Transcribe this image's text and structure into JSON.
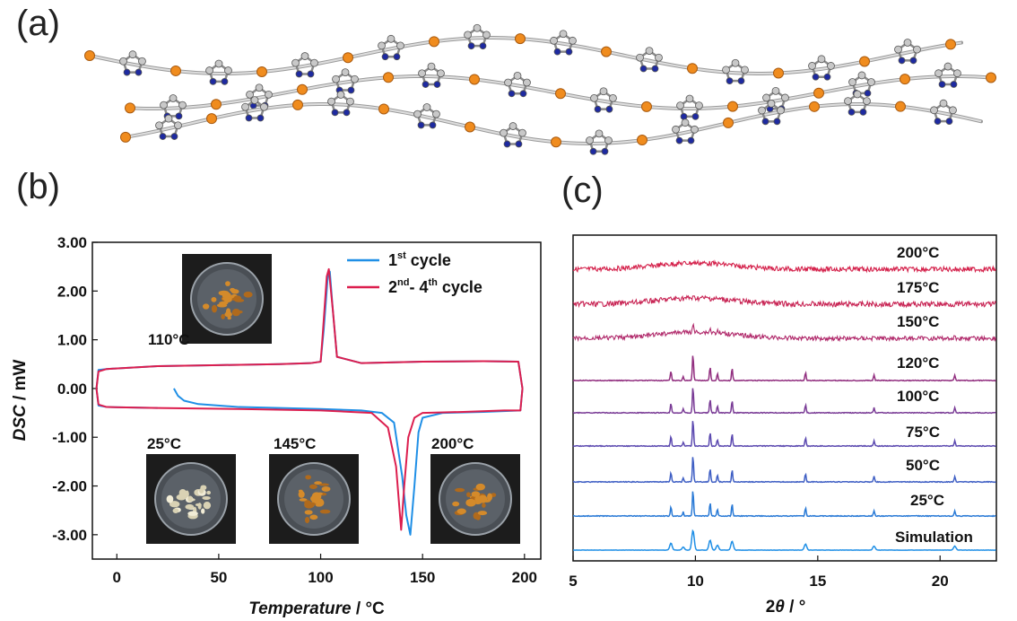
{
  "panels": {
    "a": "(a)",
    "b": "(b)",
    "c": "(c)"
  },
  "colors": {
    "first_cycle": "#1f8fe6",
    "other_cycles": "#dc1e4e",
    "metal_atom": "#f08c1e",
    "nitrogen_atom": "#1e2aa0",
    "carbon_atom": "#c8c8c8",
    "dish_content": "#b06a1c"
  },
  "chart_data": [
    {
      "id": "dsc",
      "type": "line",
      "xlabel": "Temperature",
      "xunit": "°C",
      "ylabel": "DSC",
      "yunit": "mW",
      "xlim": [
        -12,
        208
      ],
      "ylim": [
        -3.5,
        3.0
      ],
      "xticks": [
        0,
        50,
        100,
        150,
        200
      ],
      "yticks": [
        3.0,
        2.0,
        1.0,
        0.0,
        -1.0,
        -2.0,
        -3.0
      ],
      "ytick_labels": [
        "3.00",
        "2.00",
        "1.00",
        "0.00",
        "-1.00",
        "-2.00",
        "-3.00"
      ],
      "legend": [
        {
          "base": "1",
          "sup": "st",
          "rest": " cycle"
        },
        {
          "base": "2",
          "sup": "nd",
          "rest": "- 4",
          "sup2": "th",
          "rest2": " cycle"
        }
      ],
      "annotations": [
        {
          "label": "110°C",
          "x": 110
        },
        {
          "label": "25°C",
          "x": 25
        },
        {
          "label": "145°C",
          "x": 145
        },
        {
          "label": "200°C",
          "x": 200
        }
      ],
      "series": [
        {
          "name": "1st cycle",
          "x": [
            28,
            30,
            33,
            40,
            60,
            100,
            120,
            130,
            136,
            140,
            142,
            144,
            146,
            148,
            150,
            160,
            180,
            198,
            199,
            197,
            180,
            150,
            120,
            108,
            106,
            104.5,
            103.5,
            101.5,
            100,
            95,
            80,
            50,
            20,
            -5,
            -9,
            -10,
            -9,
            -5,
            20
          ],
          "y": [
            0.0,
            -0.15,
            -0.25,
            -0.32,
            -0.38,
            -0.42,
            -0.45,
            -0.5,
            -0.7,
            -1.8,
            -2.6,
            -3.0,
            -2.0,
            -0.9,
            -0.6,
            -0.5,
            -0.48,
            -0.45,
            0.0,
            0.55,
            0.56,
            0.55,
            0.52,
            0.65,
            1.6,
            2.4,
            2.3,
            1.2,
            0.55,
            0.52,
            0.5,
            0.48,
            0.46,
            0.4,
            0.38,
            0.0,
            -0.35,
            -0.38,
            -0.4
          ]
        },
        {
          "name": "2nd- 4th cycle",
          "x": [
            -9,
            -5,
            20,
            60,
            100,
            125,
            133,
            137,
            139.5,
            141,
            143,
            146,
            150,
            170,
            190,
            198,
            199,
            197,
            180,
            150,
            120,
            108,
            106,
            104,
            103,
            101,
            100,
            95,
            80,
            50,
            20,
            -5,
            -9,
            -10,
            -9
          ],
          "y": [
            -0.33,
            -0.38,
            -0.4,
            -0.42,
            -0.45,
            -0.5,
            -0.8,
            -1.6,
            -2.9,
            -2.0,
            -1.0,
            -0.6,
            -0.5,
            -0.48,
            -0.45,
            -0.45,
            0.0,
            0.55,
            0.56,
            0.55,
            0.52,
            0.65,
            1.6,
            2.45,
            2.3,
            1.1,
            0.55,
            0.52,
            0.5,
            0.48,
            0.46,
            0.4,
            0.35,
            0.0,
            -0.33
          ]
        }
      ]
    },
    {
      "id": "pxrd",
      "type": "line",
      "xlabel": "2θ",
      "xunit": "°",
      "xlim": [
        5,
        22.3
      ],
      "xticks": [
        5,
        10,
        15,
        20
      ],
      "yticks": [],
      "peaks": [
        {
          "pos": 9.0,
          "h": 0.35
        },
        {
          "pos": 9.5,
          "h": 0.15
        },
        {
          "pos": 9.9,
          "h": 1.0
        },
        {
          "pos": 10.6,
          "h": 0.5
        },
        {
          "pos": 10.9,
          "h": 0.25
        },
        {
          "pos": 11.5,
          "h": 0.45
        },
        {
          "pos": 14.5,
          "h": 0.3
        },
        {
          "pos": 17.3,
          "h": 0.2
        },
        {
          "pos": 20.6,
          "h": 0.2
        }
      ],
      "series": [
        {
          "name": "200°C",
          "label": "200°C",
          "color": "#d4204a",
          "kind": "amorphous",
          "noise": 0.9,
          "hump": 10.0,
          "crystalline": 0
        },
        {
          "name": "175°C",
          "label": "175°C",
          "color": "#c82454",
          "kind": "amorphous",
          "noise": 1.0,
          "hump": 10.0,
          "crystalline": 0
        },
        {
          "name": "150°C",
          "label": "150°C",
          "color": "#b0286a",
          "kind": "mixed",
          "noise": 0.8,
          "hump": 10.0,
          "crystalline": 0.55
        },
        {
          "name": "120°C",
          "label": "120°C",
          "color": "#923080",
          "kind": "crystal",
          "noise": 0.15,
          "hump": 0,
          "crystalline": 1
        },
        {
          "name": "100°C",
          "label": "100°C",
          "color": "#7a3c96",
          "kind": "crystal",
          "noise": 0.15,
          "hump": 0,
          "crystalline": 1
        },
        {
          "name": "75°C",
          "label": "75°C",
          "color": "#5c4ab0",
          "kind": "crystal",
          "noise": 0.15,
          "hump": 0,
          "crystalline": 1
        },
        {
          "name": "50°C",
          "label": "50°C",
          "color": "#3f5fc4",
          "kind": "crystal",
          "noise": 0.15,
          "hump": 0,
          "crystalline": 1
        },
        {
          "name": "25°C",
          "label": "25°C",
          "color": "#2a7ad6",
          "kind": "crystal",
          "noise": 0.15,
          "hump": 0,
          "crystalline": 1
        },
        {
          "name": "Simulation",
          "label": "Simulation",
          "color": "#1f8fe6",
          "kind": "sim",
          "noise": 0.05,
          "hump": 0,
          "crystalline": 1
        }
      ]
    }
  ]
}
